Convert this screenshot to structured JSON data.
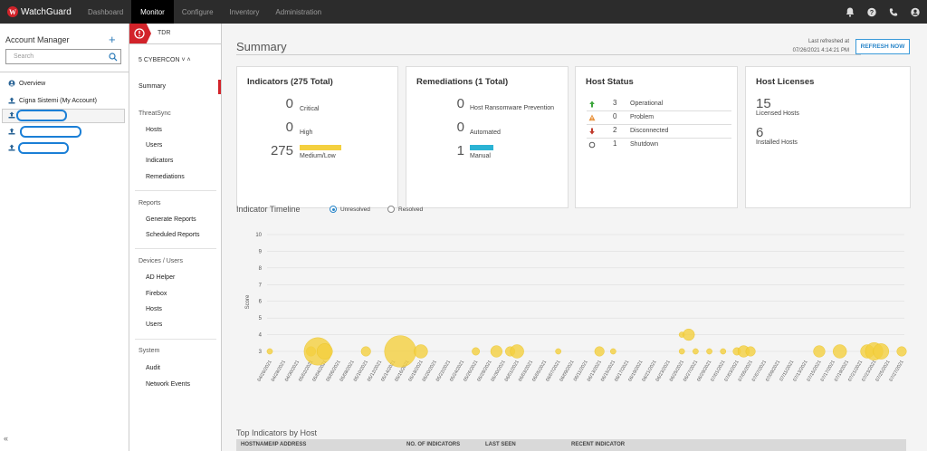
{
  "topbar": {
    "brand": "WatchGuard",
    "brand_mark": "W",
    "nav": [
      "Dashboard",
      "Monitor",
      "Configure",
      "Inventory",
      "Administration"
    ],
    "active_nav": "Monitor",
    "icons": [
      "bell-icon",
      "help-icon",
      "phone-icon",
      "user-icon"
    ]
  },
  "account_manager": {
    "title": "Account Manager",
    "add_icon": "+",
    "search_placeholder": "Search",
    "items": [
      {
        "label": "Overview",
        "icon": "overview-icon"
      },
      {
        "label": "Cigna Sistemi (My Account)",
        "icon": "account-icon"
      }
    ],
    "collapse_glyph": "«"
  },
  "midnav": {
    "product": "TDR",
    "account": "5  CYBERCON  ˅  ˄",
    "summary": "Summary",
    "sections": [
      {
        "title": "ThreatSync",
        "items": [
          "Hosts",
          "Users",
          "Indicators",
          "Remediations"
        ]
      },
      {
        "title": "Reports",
        "items": [
          "Generate Reports",
          "Scheduled Reports"
        ]
      },
      {
        "title": "Devices / Users",
        "items": [
          "AD Helper",
          "Firebox",
          "Hosts",
          "Users"
        ]
      },
      {
        "title": "System",
        "items": [
          "Audit",
          "Network Events"
        ]
      }
    ]
  },
  "summary": {
    "title": "Summary",
    "last_refreshed_label": "Last refreshed at",
    "last_refreshed_time": "07/26/2021 4:14:21 PM",
    "refresh_button": "REFRESH NOW",
    "indicators": {
      "title": "Indicators (275 Total)",
      "rows": [
        {
          "value": "0",
          "label": "Critical"
        },
        {
          "value": "0",
          "label": "High"
        },
        {
          "value": "275",
          "label": "Medium/Low"
        }
      ],
      "bar_color": "#f4d03f"
    },
    "remediations": {
      "title": "Remediations (1 Total)",
      "rows": [
        {
          "value": "0",
          "label": "Host Ransomware Prevention"
        },
        {
          "value": "0",
          "label": "Automated"
        },
        {
          "value": "1",
          "label": "Manual"
        }
      ],
      "bar_color": "#2bb3d4"
    },
    "host_status": {
      "title": "Host Status",
      "rows": [
        {
          "value": "3",
          "label": "Operational",
          "icon": "arrow-up-icon",
          "color": "#3aa53a"
        },
        {
          "value": "0",
          "label": "Problem",
          "icon": "warning-icon",
          "color": "#e8913a"
        },
        {
          "value": "2",
          "label": "Disconnected",
          "icon": "arrow-down-icon",
          "color": "#c0392b"
        },
        {
          "value": "1",
          "label": "Shutdown",
          "icon": "circle-icon",
          "color": "#555555"
        }
      ]
    },
    "host_licenses": {
      "title": "Host Licenses",
      "licensed_value": "15",
      "licensed_label": "Licensed Hosts",
      "installed_value": "6",
      "installed_label": "Installed Hosts"
    }
  },
  "timeline": {
    "title": "Indicator Timeline",
    "options": [
      "Unresolved",
      "Resolved"
    ],
    "selected": "Unresolved"
  },
  "chart_data": {
    "type": "scatter",
    "ylabel": "Score",
    "ylim": [
      3,
      10
    ],
    "yticks": [
      3,
      4,
      5,
      6,
      7,
      8,
      9,
      10
    ],
    "grid": true,
    "bubble_color": "#f4d03f",
    "categories": [
      "04/26/2021",
      "04/28/2021",
      "04/30/2021",
      "05/02/2021",
      "05/04/2021",
      "05/06/2021",
      "05/08/2021",
      "05/10/2021",
      "05/12/2021",
      "05/14/2021",
      "05/16/2021",
      "05/18/2021",
      "05/20/2021",
      "05/22/2021",
      "05/24/2021",
      "05/26/2021",
      "05/28/2021",
      "05/30/2021",
      "06/01/2021",
      "06/03/2021",
      "06/05/2021",
      "06/07/2021",
      "06/09/2021",
      "06/11/2021",
      "06/13/2021",
      "06/15/2021",
      "06/17/2021",
      "06/19/2021",
      "06/21/2021",
      "06/23/2021",
      "06/25/2021",
      "06/27/2021",
      "06/29/2021",
      "07/01/2021",
      "07/03/2021",
      "07/05/2021",
      "07/07/2021",
      "07/09/2021",
      "07/11/2021",
      "07/13/2021",
      "07/15/2021",
      "07/17/2021",
      "07/19/2021",
      "07/21/2021",
      "07/23/2021",
      "07/25/2021",
      "07/27/2021"
    ],
    "points": [
      {
        "x": "04/26/2021",
        "y": 3,
        "size": 1
      },
      {
        "x": "05/02/2021",
        "y": 3,
        "size": 3
      },
      {
        "x": "05/03/2021",
        "y": 3,
        "size": 12
      },
      {
        "x": "05/04/2021",
        "y": 3,
        "size": 6
      },
      {
        "x": "05/10/2021",
        "y": 3,
        "size": 3
      },
      {
        "x": "05/15/2021",
        "y": 3,
        "size": 14
      },
      {
        "x": "05/18/2021",
        "y": 3,
        "size": 5
      },
      {
        "x": "05/26/2021",
        "y": 3,
        "size": 2
      },
      {
        "x": "05/29/2021",
        "y": 3,
        "size": 4
      },
      {
        "x": "05/31/2021",
        "y": 3,
        "size": 3
      },
      {
        "x": "06/01/2021",
        "y": 3,
        "size": 5
      },
      {
        "x": "06/07/2021",
        "y": 3,
        "size": 1
      },
      {
        "x": "06/13/2021",
        "y": 3,
        "size": 3
      },
      {
        "x": "06/15/2021",
        "y": 3,
        "size": 1
      },
      {
        "x": "06/25/2021",
        "y": 3,
        "size": 1
      },
      {
        "x": "06/25/2021",
        "y": 4,
        "size": 1
      },
      {
        "x": "06/26/2021",
        "y": 4,
        "size": 4
      },
      {
        "x": "06/27/2021",
        "y": 3,
        "size": 1
      },
      {
        "x": "06/29/2021",
        "y": 3,
        "size": 1
      },
      {
        "x": "07/01/2021",
        "y": 3,
        "size": 1
      },
      {
        "x": "07/03/2021",
        "y": 3,
        "size": 2
      },
      {
        "x": "07/04/2021",
        "y": 3,
        "size": 4
      },
      {
        "x": "07/05/2021",
        "y": 3,
        "size": 3
      },
      {
        "x": "07/15/2021",
        "y": 3,
        "size": 4
      },
      {
        "x": "07/18/2021",
        "y": 3,
        "size": 5
      },
      {
        "x": "07/22/2021",
        "y": 3,
        "size": 5
      },
      {
        "x": "07/23/2021",
        "y": 3,
        "size": 7
      },
      {
        "x": "07/24/2021",
        "y": 3,
        "size": 6
      },
      {
        "x": "07/27/2021",
        "y": 3,
        "size": 3
      }
    ]
  },
  "top_indicators": {
    "title": "Top Indicators by Host",
    "columns": [
      "HOSTNAME/IP ADDRESS",
      "NO. OF INDICATORS",
      "LAST SEEN",
      "RECENT INDICATOR"
    ]
  }
}
